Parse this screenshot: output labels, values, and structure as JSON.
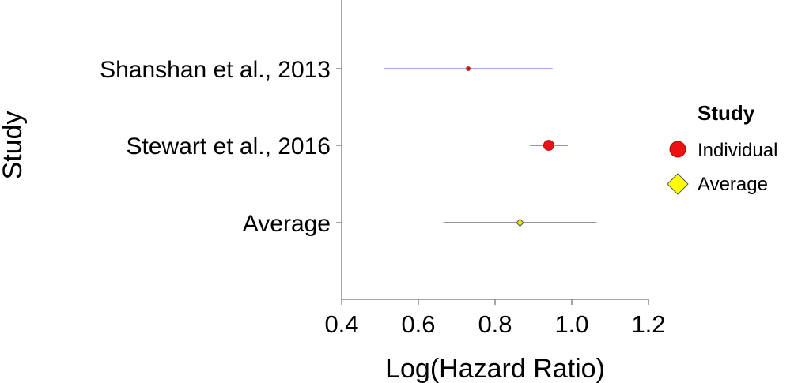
{
  "chart_data": {
    "type": "forest",
    "xlabel": "Log(Hazard Ratio)",
    "ylabel": "Study",
    "xlim": [
      0.4,
      1.2
    ],
    "xticks": [
      "0.4",
      "0.6",
      "0.8",
      "1.0",
      "1.2"
    ],
    "studies": [
      {
        "label": "Shanshan et al., 2013",
        "estimate": 0.73,
        "lower": 0.51,
        "upper": 0.95,
        "type": "Individual",
        "weight": "small",
        "ci_color": "#8c8cff",
        "point_color": "#cc1f1f"
      },
      {
        "label": "Stewart et al., 2016",
        "estimate": 0.94,
        "lower": 0.89,
        "upper": 0.99,
        "type": "Individual",
        "weight": "large",
        "ci_color": "#6a6adf",
        "point_color": "#e8101a"
      },
      {
        "label": "Average",
        "estimate": 0.865,
        "lower": 0.665,
        "upper": 1.065,
        "type": "Average",
        "weight": "medium",
        "ci_color": "#777777",
        "point_color": "#f2e800"
      }
    ],
    "legend": {
      "title": "Study",
      "position": "right",
      "items": [
        {
          "label": "Individual",
          "shape": "circle",
          "color": "#ee1111"
        },
        {
          "label": "Average",
          "shape": "diamond",
          "color": "#ffff00"
        }
      ]
    },
    "grid": false
  }
}
